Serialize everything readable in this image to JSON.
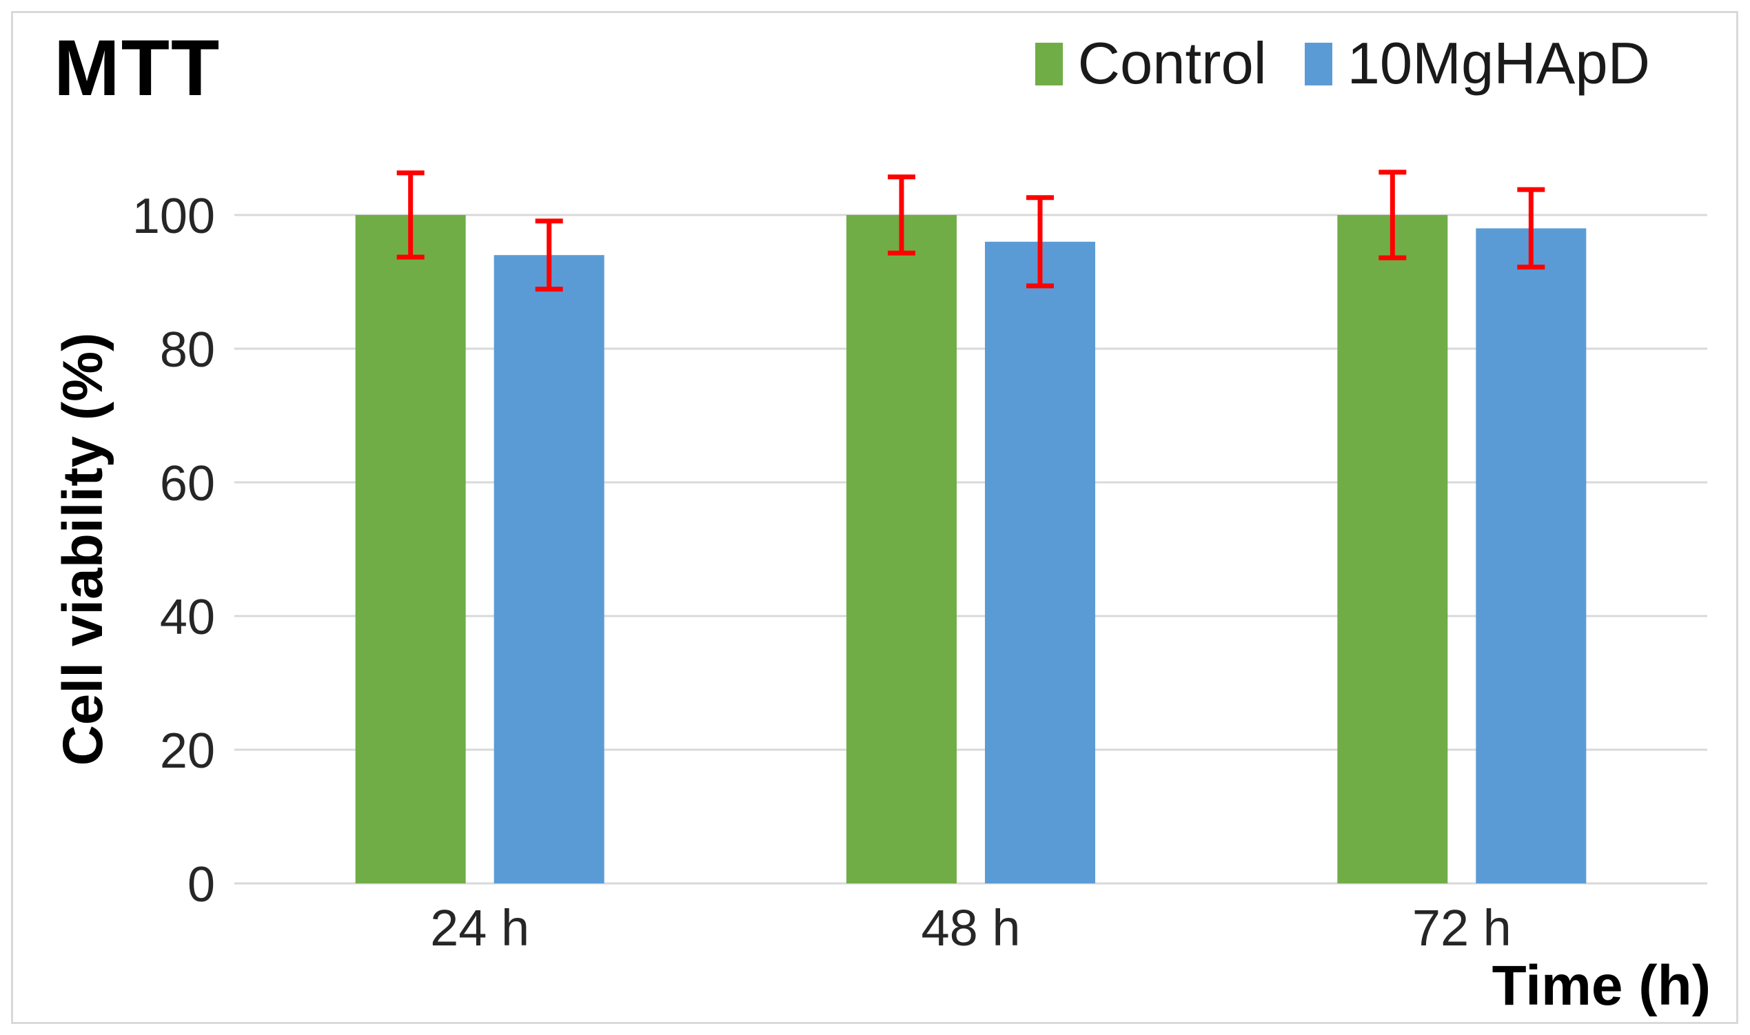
{
  "chart_data": {
    "type": "bar",
    "title": "MTT",
    "xlabel": "Time (h)",
    "ylabel": "Cell viability (%)",
    "categories": [
      "24 h",
      "48 h",
      "72 h"
    ],
    "series": [
      {
        "name": "Control",
        "color": "#70AD47",
        "values": [
          100,
          100,
          100
        ],
        "errors": [
          6.3,
          5.7,
          6.4
        ]
      },
      {
        "name": "10MgHApD",
        "color": "#5B9BD5",
        "values": [
          94,
          96,
          98
        ],
        "errors": [
          5.1,
          6.6,
          5.8
        ]
      }
    ],
    "ylim": [
      0,
      100
    ],
    "yticks": [
      0,
      20,
      40,
      60,
      80,
      100
    ],
    "grid": true,
    "legend_position": "top-right",
    "error_bar_color": "#FF0000",
    "gridline_color": "#D9D9D9",
    "frame_border_color": "#D9D9D9",
    "background_color": "#FFFFFF"
  }
}
